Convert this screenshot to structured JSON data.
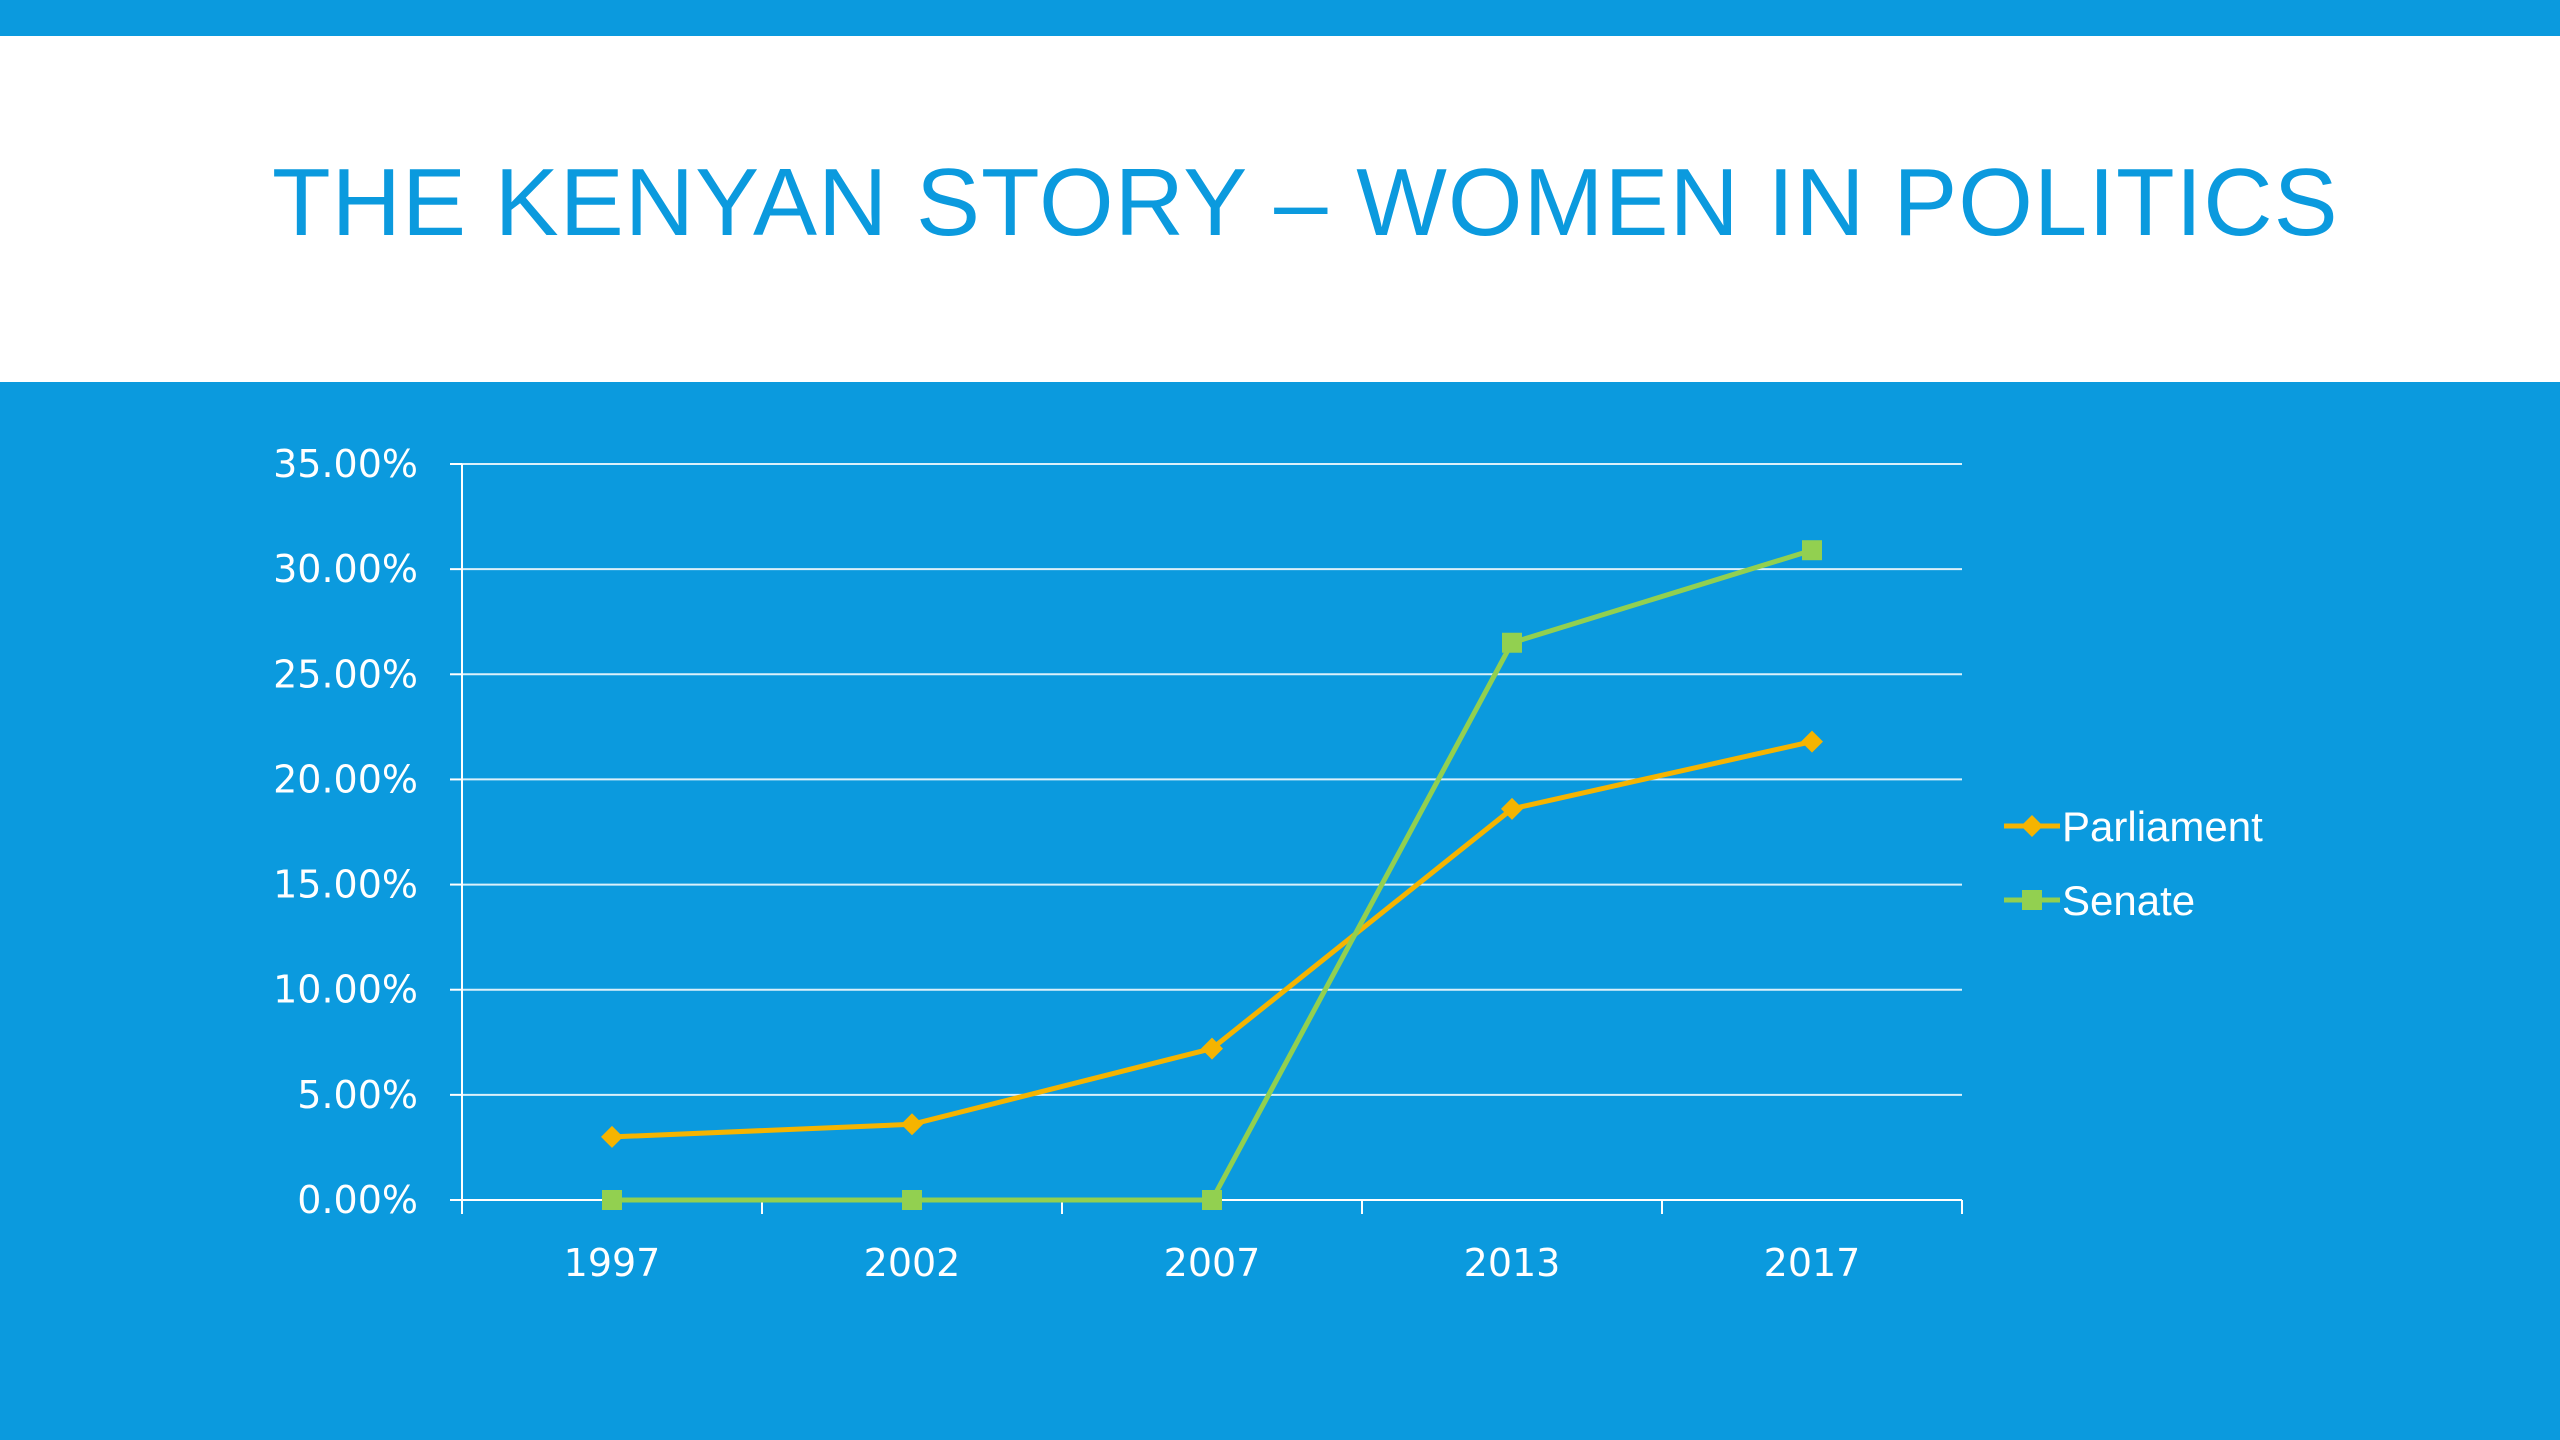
{
  "slide": {
    "title": "THE KENYAN STORY – WOMEN IN POLITICS"
  },
  "colors": {
    "background": "#0b9ade",
    "title": "#0b9ade",
    "parliament": "#f5b400",
    "senate": "#92d050",
    "grid": "#ffffff"
  },
  "chart_data": {
    "type": "line",
    "title": "",
    "xlabel": "",
    "ylabel": "",
    "categories": [
      "1997",
      "2002",
      "2007",
      "2013",
      "2017"
    ],
    "ylim": [
      0,
      35
    ],
    "yticks": [
      "0.00%",
      "5.00%",
      "10.00%",
      "15.00%",
      "20.00%",
      "25.00%",
      "30.00%",
      "35.00%"
    ],
    "grid": true,
    "legend_position": "right",
    "series": [
      {
        "name": "Parliament",
        "values": [
          3.0,
          3.6,
          7.2,
          18.6,
          21.8
        ],
        "marker": "diamond",
        "color": "#f5b400"
      },
      {
        "name": "Senate",
        "values": [
          0.0,
          0.0,
          0.0,
          26.5,
          30.9
        ],
        "marker": "square",
        "color": "#92d050"
      }
    ]
  }
}
